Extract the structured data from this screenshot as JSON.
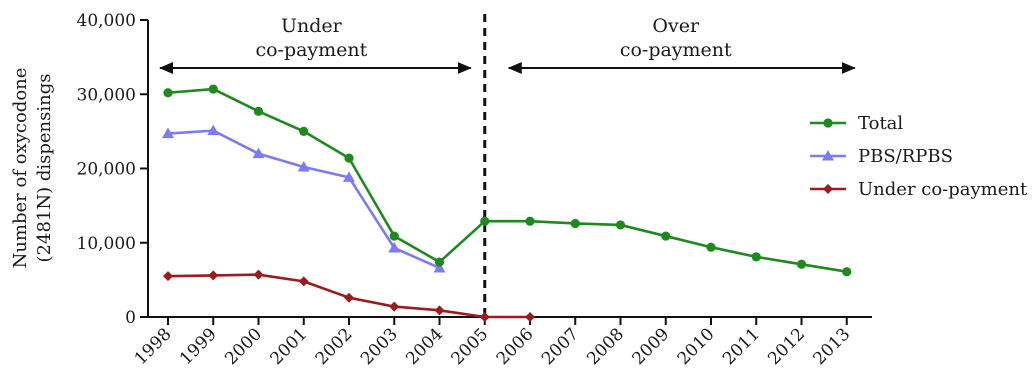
{
  "chart_data": {
    "type": "line",
    "title": "",
    "xlabel": "",
    "ylabel_lines": [
      "Number of  oxycodone",
      "(2481N) dispensings"
    ],
    "ylim": [
      0,
      40000
    ],
    "y_ticks": [
      {
        "value": 0,
        "label": "0"
      },
      {
        "value": 10000,
        "label": "10,000"
      },
      {
        "value": 20000,
        "label": "20,000"
      },
      {
        "value": 30000,
        "label": "30,000"
      },
      {
        "value": 40000,
        "label": "40,000"
      }
    ],
    "categories": [
      "1998",
      "1999",
      "2000",
      "2001",
      "2002",
      "2003",
      "2004",
      "2005",
      "2006",
      "2007",
      "2008",
      "2009",
      "2010",
      "2011",
      "2012",
      "2013"
    ],
    "series": [
      {
        "name": "Total",
        "color": "#1e8a1e",
        "marker": "circle",
        "values": [
          30200,
          30700,
          27700,
          25000,
          21400,
          10900,
          7400,
          12900,
          12900,
          12600,
          12400,
          10900,
          9400,
          8100,
          7100,
          6100
        ]
      },
      {
        "name": "PBS/RPBS",
        "color": "#7b7bf5",
        "marker": "triangle",
        "values": [
          24700,
          25100,
          22000,
          20200,
          18800,
          9300,
          6600,
          null,
          null,
          null,
          null,
          null,
          null,
          null,
          null,
          null
        ]
      },
      {
        "name": "Under co-payment",
        "color": "#9b1c1c",
        "marker": "diamond",
        "values": [
          5500,
          5600,
          5700,
          4800,
          2600,
          1400,
          900,
          0,
          0,
          null,
          null,
          null,
          null,
          null,
          null,
          null
        ]
      }
    ],
    "divider_at": "2005",
    "annotations": [
      {
        "lines": [
          "Under",
          "co-payment"
        ],
        "from": "1998",
        "to": "2005"
      },
      {
        "lines": [
          "Over",
          "co-payment"
        ],
        "from": "2005",
        "to": "2013"
      }
    ],
    "legend_position": "right"
  }
}
